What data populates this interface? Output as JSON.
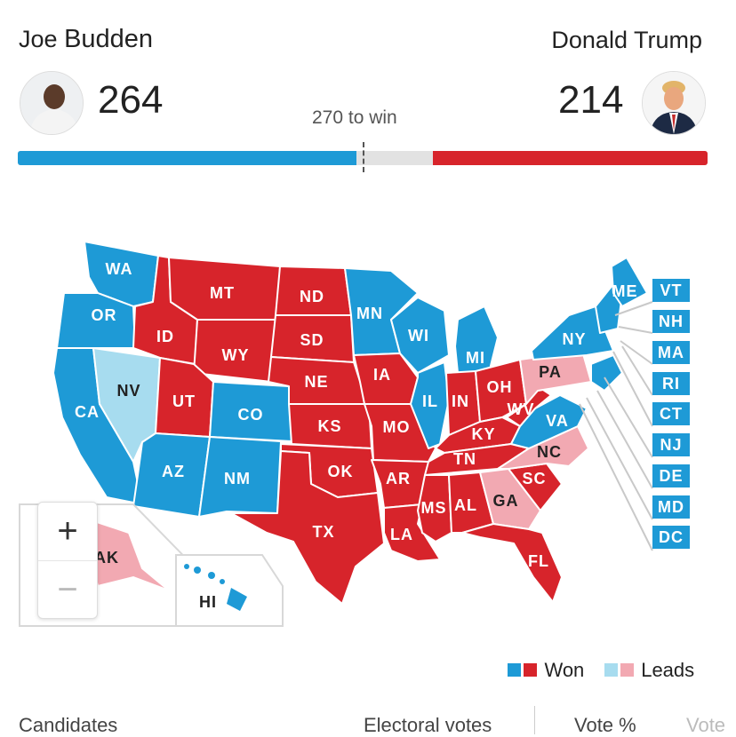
{
  "candidates": {
    "left": {
      "first": "Joe",
      "last": "Budden",
      "votes": "264",
      "color": "#1e9ad6",
      "avatar_icon": "person-photo"
    },
    "right": {
      "name": "Donald Trump",
      "votes": "214",
      "color": "#d7242b",
      "avatar_icon": "person-photo"
    },
    "to_win": "270 to win",
    "progress": {
      "left_fraction": 0.4906,
      "right_fraction": 0.3977
    }
  },
  "map": {
    "colors": {
      "dem_won": "#1e9ad6",
      "rep_won": "#d7242b",
      "dem_leads": "#a7dcef",
      "rep_leads": "#f2a9b2"
    },
    "states": {
      "WA": "WA",
      "OR": "OR",
      "CA": "CA",
      "NV": "NV",
      "ID": "ID",
      "MT": "MT",
      "WY": "WY",
      "UT": "UT",
      "AZ": "AZ",
      "CO": "CO",
      "NM": "NM",
      "ND": "ND",
      "SD": "SD",
      "NE": "NE",
      "KS": "KS",
      "OK": "OK",
      "TX": "TX",
      "MN": "MN",
      "IA": "IA",
      "MO": "MO",
      "AR": "AR",
      "LA": "LA",
      "WI": "WI",
      "IL": "IL",
      "MI": "MI",
      "IN": "IN",
      "OH": "OH",
      "KY": "KY",
      "TN": "TN",
      "MS": "MS",
      "AL": "AL",
      "GA": "GA",
      "FL": "FL",
      "SC": "SC",
      "NC": "NC",
      "VA": "VA",
      "WV": "WV",
      "PA": "PA",
      "NY": "NY",
      "ME": "ME",
      "AK": "AK",
      "HI": "HI"
    },
    "small_states": [
      "VT",
      "NH",
      "MA",
      "RI",
      "CT",
      "NJ",
      "DE",
      "MD",
      "DC"
    ]
  },
  "zoom": {
    "in": "+",
    "out": "−"
  },
  "legend": {
    "won": "Won",
    "leads": "Leads"
  },
  "table_header": {
    "candidates": "Candidates",
    "electoral_votes": "Electoral votes",
    "vote_pct": "Vote %",
    "votes": "Vote"
  }
}
